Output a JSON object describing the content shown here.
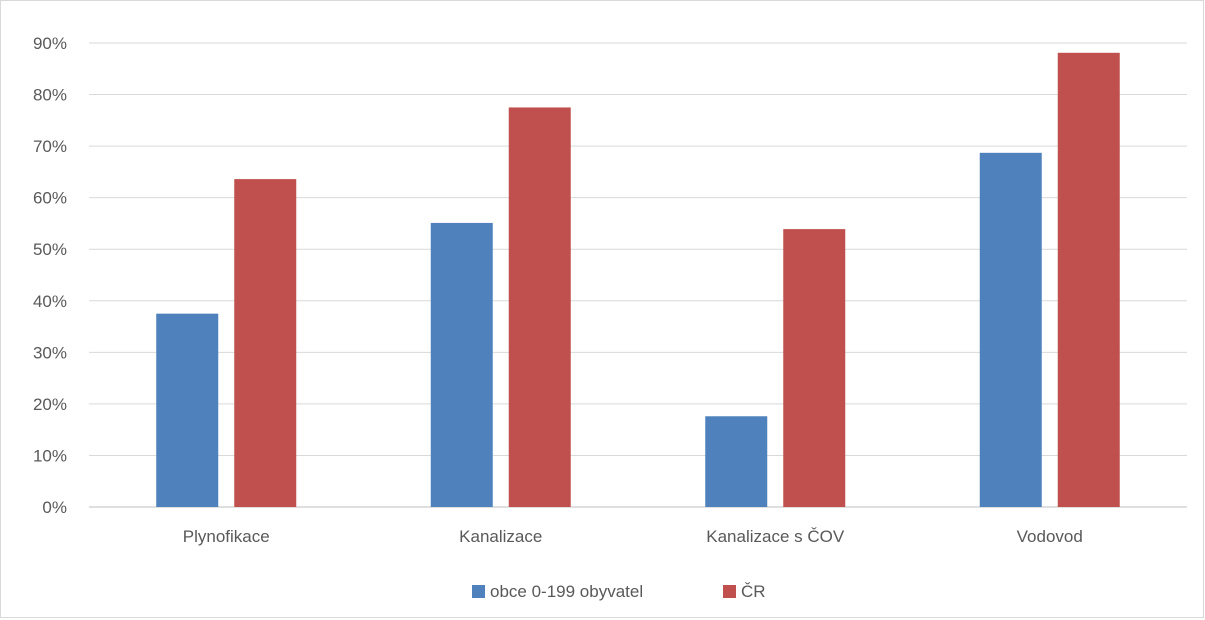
{
  "chart_data": {
    "type": "bar",
    "categories": [
      "Plynofikace",
      "Kanalizace",
      "Kanalizace s ČOV",
      "Vodovod"
    ],
    "series": [
      {
        "name": "obce 0-199 obyvatel",
        "color": "#4f81bd",
        "values": [
          37.5,
          55.1,
          17.6,
          68.7
        ]
      },
      {
        "name": "ČR",
        "color": "#c0504d",
        "values": [
          63.6,
          77.5,
          53.9,
          88.1
        ]
      }
    ],
    "y_ticks": [
      "0%",
      "10%",
      "20%",
      "30%",
      "40%",
      "50%",
      "60%",
      "70%",
      "80%",
      "90%"
    ],
    "ylim": [
      0,
      90
    ],
    "y_unit": "%",
    "grid": true,
    "legend_position": "bottom-center",
    "title": "",
    "xlabel": "",
    "ylabel": ""
  }
}
